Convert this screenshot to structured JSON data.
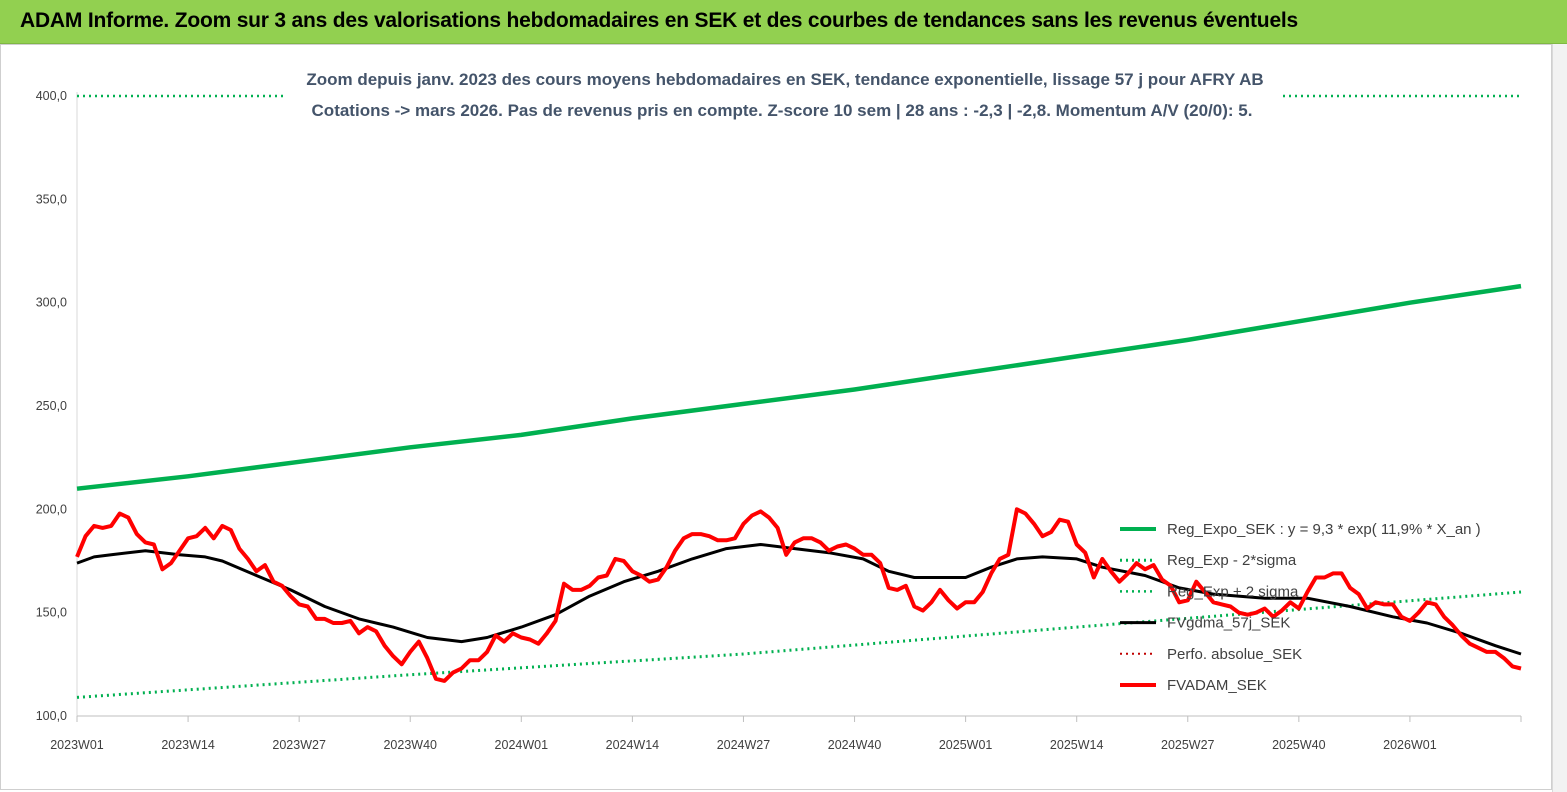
{
  "banner": {
    "title": "ADAM Informe. Zoom sur 3 ans des valorisations hebdomadaires en SEK et des courbes de tendances sans les revenus éventuels"
  },
  "chart_data": {
    "type": "line",
    "title": "Zoom depuis janv. 2023 des cours moyens hebdomadaires en SEK, tendance exponentielle, lissage 57 j pour AFRY AB",
    "subtitle": "Cotations -> mars 2026. Pas de revenus pris en  compte. Z-score 10 sem  | 28 ans : -2,3 | -2,8. Momentum A/V (20/0): 5.",
    "ylim": [
      100,
      400
    ],
    "yticks": [
      "100,0",
      "150,0",
      "200,0",
      "250,0",
      "300,0",
      "350,0",
      "400,0"
    ],
    "xlim": [
      1,
      170
    ],
    "xticks": [
      {
        "label": "2023W01",
        "x": 1
      },
      {
        "label": "2023W14",
        "x": 14
      },
      {
        "label": "2023W27",
        "x": 27
      },
      {
        "label": "2023W40",
        "x": 40
      },
      {
        "label": "2024W01",
        "x": 53
      },
      {
        "label": "2024W14",
        "x": 66
      },
      {
        "label": "2024W27",
        "x": 79
      },
      {
        "label": "2024W40",
        "x": 92
      },
      {
        "label": "2025W01",
        "x": 105
      },
      {
        "label": "2025W14",
        "x": 118
      },
      {
        "label": "2025W27",
        "x": 131
      },
      {
        "label": "2025W40",
        "x": 144
      },
      {
        "label": "2026W01",
        "x": 157
      }
    ],
    "grid": false,
    "legend_position": "right",
    "series": [
      {
        "name": "Reg_Expo_SEK : y = 9,3 * exp( 11,9% *  X_an )",
        "color": "#00B050",
        "style": "solid",
        "width": 4.5,
        "points": [
          [
            1,
            210
          ],
          [
            14,
            216
          ],
          [
            27,
            223
          ],
          [
            40,
            230
          ],
          [
            53,
            236
          ],
          [
            66,
            244
          ],
          [
            79,
            251
          ],
          [
            92,
            258
          ],
          [
            105,
            266
          ],
          [
            118,
            274
          ],
          [
            131,
            282
          ],
          [
            144,
            291
          ],
          [
            157,
            300
          ],
          [
            170,
            308
          ]
        ]
      },
      {
        "name": "Reg_Exp - 2*sigma",
        "color": "#00B050",
        "style": "dotted",
        "width": 3,
        "points": [
          [
            1,
            109
          ],
          [
            40,
            120
          ],
          [
            79,
            130
          ],
          [
            118,
            143
          ],
          [
            170,
            160
          ]
        ]
      },
      {
        "name": "Reg_Exp + 2 sigma",
        "color": "#00B050",
        "style": "dotted",
        "width": 2.5,
        "points": [
          [
            1,
            400
          ],
          [
            170,
            400
          ]
        ]
      },
      {
        "name": "FVgdma_57j_SEK",
        "color": "#000000",
        "style": "solid",
        "width": 3,
        "points": [
          [
            1,
            174
          ],
          [
            3,
            177
          ],
          [
            5,
            178
          ],
          [
            9,
            180
          ],
          [
            13,
            178
          ],
          [
            16,
            177
          ],
          [
            18,
            175
          ],
          [
            22,
            168
          ],
          [
            26,
            161
          ],
          [
            30,
            153
          ],
          [
            34,
            147
          ],
          [
            38,
            143
          ],
          [
            42,
            138
          ],
          [
            46,
            136
          ],
          [
            49,
            138
          ],
          [
            53,
            143
          ],
          [
            57,
            149
          ],
          [
            61,
            158
          ],
          [
            65,
            165
          ],
          [
            69,
            170
          ],
          [
            73,
            176
          ],
          [
            77,
            181
          ],
          [
            81,
            183
          ],
          [
            85,
            181
          ],
          [
            89,
            179
          ],
          [
            93,
            176
          ],
          [
            96,
            170
          ],
          [
            99,
            167
          ],
          [
            105,
            167
          ],
          [
            108,
            172
          ],
          [
            111,
            176
          ],
          [
            114,
            177
          ],
          [
            118,
            176
          ],
          [
            121,
            172
          ],
          [
            126,
            168
          ],
          [
            130,
            162
          ],
          [
            134,
            159
          ],
          [
            140,
            157
          ],
          [
            145,
            157
          ],
          [
            150,
            153
          ],
          [
            155,
            148
          ],
          [
            159,
            145
          ],
          [
            163,
            140
          ],
          [
            167,
            134
          ],
          [
            170,
            130
          ]
        ]
      },
      {
        "name": "Perfo. absolue_SEK",
        "color": "#C00000",
        "style": "dotted",
        "width": 2,
        "points": []
      },
      {
        "name": "FVADAM_SEK",
        "color": "#FF0000",
        "style": "solid",
        "width": 4,
        "points": [
          [
            1,
            177
          ],
          [
            2,
            187
          ],
          [
            3,
            192
          ],
          [
            4,
            191
          ],
          [
            5,
            192
          ],
          [
            6,
            198
          ],
          [
            7,
            196
          ],
          [
            8,
            188
          ],
          [
            9,
            184
          ],
          [
            10,
            183
          ],
          [
            11,
            171
          ],
          [
            12,
            174
          ],
          [
            13,
            180
          ],
          [
            14,
            186
          ],
          [
            15,
            187
          ],
          [
            16,
            191
          ],
          [
            17,
            186
          ],
          [
            18,
            192
          ],
          [
            19,
            190
          ],
          [
            20,
            181
          ],
          [
            21,
            176
          ],
          [
            22,
            170
          ],
          [
            23,
            173
          ],
          [
            24,
            165
          ],
          [
            25,
            163
          ],
          [
            26,
            158
          ],
          [
            27,
            154
          ],
          [
            28,
            153
          ],
          [
            29,
            147
          ],
          [
            30,
            147
          ],
          [
            31,
            145
          ],
          [
            32,
            145
          ],
          [
            33,
            146
          ],
          [
            34,
            140
          ],
          [
            35,
            143
          ],
          [
            36,
            141
          ],
          [
            37,
            134
          ],
          [
            38,
            129
          ],
          [
            39,
            125
          ],
          [
            40,
            131
          ],
          [
            41,
            136
          ],
          [
            42,
            128
          ],
          [
            43,
            118
          ],
          [
            44,
            117
          ],
          [
            45,
            121
          ],
          [
            46,
            123
          ],
          [
            47,
            127
          ],
          [
            48,
            127
          ],
          [
            49,
            131
          ],
          [
            50,
            139
          ],
          [
            51,
            136
          ],
          [
            52,
            140
          ],
          [
            53,
            138
          ],
          [
            54,
            137
          ],
          [
            55,
            135
          ],
          [
            56,
            140
          ],
          [
            57,
            146
          ],
          [
            58,
            164
          ],
          [
            59,
            161
          ],
          [
            60,
            161
          ],
          [
            61,
            163
          ],
          [
            62,
            167
          ],
          [
            63,
            168
          ],
          [
            64,
            176
          ],
          [
            65,
            175
          ],
          [
            66,
            170
          ],
          [
            67,
            168
          ],
          [
            68,
            165
          ],
          [
            69,
            166
          ],
          [
            70,
            172
          ],
          [
            71,
            180
          ],
          [
            72,
            186
          ],
          [
            73,
            188
          ],
          [
            74,
            188
          ],
          [
            75,
            187
          ],
          [
            76,
            185
          ],
          [
            77,
            185
          ],
          [
            78,
            186
          ],
          [
            79,
            193
          ],
          [
            80,
            197
          ],
          [
            81,
            199
          ],
          [
            82,
            196
          ],
          [
            83,
            191
          ],
          [
            84,
            178
          ],
          [
            85,
            184
          ],
          [
            86,
            186
          ],
          [
            87,
            186
          ],
          [
            88,
            184
          ],
          [
            89,
            180
          ],
          [
            90,
            182
          ],
          [
            91,
            183
          ],
          [
            92,
            181
          ],
          [
            93,
            178
          ],
          [
            94,
            178
          ],
          [
            95,
            174
          ],
          [
            96,
            162
          ],
          [
            97,
            161
          ],
          [
            98,
            163
          ],
          [
            99,
            153
          ],
          [
            100,
            151
          ],
          [
            101,
            155
          ],
          [
            102,
            161
          ],
          [
            103,
            156
          ],
          [
            104,
            152
          ],
          [
            105,
            155
          ],
          [
            106,
            155
          ],
          [
            107,
            160
          ],
          [
            108,
            169
          ],
          [
            109,
            176
          ],
          [
            110,
            178
          ],
          [
            111,
            200
          ],
          [
            112,
            198
          ],
          [
            113,
            193
          ],
          [
            114,
            187
          ],
          [
            115,
            189
          ],
          [
            116,
            195
          ],
          [
            117,
            194
          ],
          [
            118,
            183
          ],
          [
            119,
            179
          ],
          [
            120,
            167
          ],
          [
            121,
            176
          ],
          [
            122,
            170
          ],
          [
            123,
            165
          ],
          [
            124,
            169
          ],
          [
            125,
            174
          ],
          [
            126,
            171
          ],
          [
            127,
            173
          ],
          [
            128,
            166
          ],
          [
            129,
            163
          ],
          [
            130,
            155
          ],
          [
            131,
            156
          ],
          [
            132,
            165
          ],
          [
            133,
            160
          ],
          [
            134,
            155
          ],
          [
            135,
            154
          ],
          [
            136,
            153
          ],
          [
            137,
            150
          ],
          [
            138,
            149
          ],
          [
            139,
            150
          ],
          [
            140,
            152
          ],
          [
            141,
            148
          ],
          [
            142,
            151
          ],
          [
            143,
            155
          ],
          [
            144,
            152
          ],
          [
            145,
            160
          ],
          [
            146,
            167
          ],
          [
            147,
            167
          ],
          [
            148,
            169
          ],
          [
            149,
            169
          ],
          [
            150,
            162
          ],
          [
            151,
            159
          ],
          [
            152,
            152
          ],
          [
            153,
            155
          ],
          [
            154,
            154
          ],
          [
            155,
            154
          ],
          [
            156,
            148
          ],
          [
            157,
            146
          ],
          [
            158,
            150
          ],
          [
            159,
            155
          ],
          [
            160,
            154
          ],
          [
            161,
            148
          ],
          [
            162,
            144
          ],
          [
            163,
            139
          ],
          [
            164,
            135
          ],
          [
            165,
            133
          ],
          [
            166,
            131
          ],
          [
            167,
            131
          ],
          [
            168,
            128
          ],
          [
            169,
            124
          ],
          [
            170,
            123
          ]
        ]
      }
    ]
  }
}
